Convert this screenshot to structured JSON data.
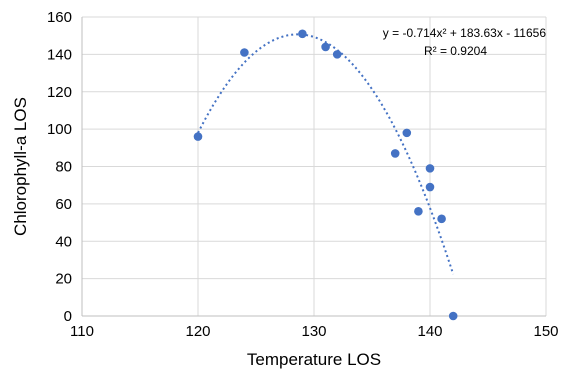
{
  "chart_data": {
    "type": "scatter",
    "xlabel": "Temperature LOS",
    "ylabel": "Chlorophyll-a  LOS",
    "xlim": [
      110,
      150
    ],
    "ylim": [
      0,
      160
    ],
    "x_ticks": [
      "110",
      "120",
      "130",
      "140",
      "150"
    ],
    "y_ticks": [
      "0",
      "20",
      "40",
      "60",
      "80",
      "100",
      "120",
      "140",
      "160"
    ],
    "grid": true,
    "series": [
      {
        "points": [
          {
            "x": 120,
            "y": 96
          },
          {
            "x": 124,
            "y": 141
          },
          {
            "x": 129,
            "y": 151
          },
          {
            "x": 131,
            "y": 144
          },
          {
            "x": 132,
            "y": 140
          },
          {
            "x": 137,
            "y": 87
          },
          {
            "x": 138,
            "y": 98
          },
          {
            "x": 139,
            "y": 56
          },
          {
            "x": 140,
            "y": 79
          },
          {
            "x": 140,
            "y": 69
          },
          {
            "x": 141,
            "y": 52
          },
          {
            "x": 142,
            "y": 0
          }
        ],
        "color": "#4472C4"
      }
    ],
    "trendline": {
      "kind": "polynomial-2",
      "coefficients": [
        -0.714,
        183.63,
        -11656
      ],
      "x_range": [
        120,
        142
      ],
      "style": "dotted",
      "color": "#4472C4"
    },
    "annotations": {
      "equation": "y = -0.714x² + 183.63x - 11656",
      "r_squared": "R² = 0.9204"
    }
  }
}
